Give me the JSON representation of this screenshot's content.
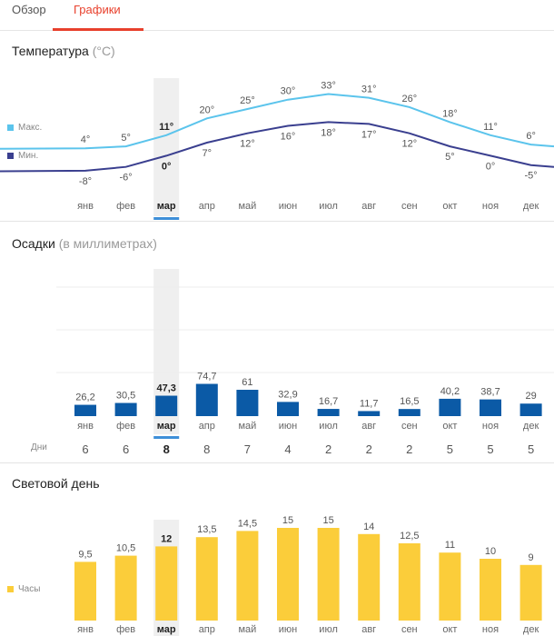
{
  "tabs": {
    "overview": "Обзор",
    "charts": "Графики"
  },
  "temperature": {
    "title": "Температура",
    "unit": "(°C)",
    "legend_max": "Макс.",
    "legend_min": "Мин.",
    "color_max": "#5bc4ec",
    "color_min": "#3a3f8f"
  },
  "precipitation": {
    "title": "Осадки",
    "unit": "(в миллиметрах)",
    "days_label": "Дни",
    "color": "#0b5aa6"
  },
  "daylight": {
    "title": "Световой день",
    "legend": "Часы",
    "color": "#fbcd3a"
  },
  "selected_month_index": 2,
  "chart_data": [
    {
      "type": "line",
      "title": "Температура",
      "categories": [
        "янв",
        "фев",
        "мар",
        "апр",
        "май",
        "июн",
        "июл",
        "авг",
        "сен",
        "окт",
        "ноя",
        "дек"
      ],
      "series": [
        {
          "name": "Макс.",
          "values": [
            4,
            5,
            11,
            20,
            25,
            30,
            33,
            31,
            26,
            18,
            11,
            6
          ],
          "labels": [
            "4°",
            "5°",
            "11°",
            "20°",
            "25°",
            "30°",
            "33°",
            "31°",
            "26°",
            "18°",
            "11°",
            "6°"
          ]
        },
        {
          "name": "Мин.",
          "values": [
            -8,
            -6,
            0,
            7,
            12,
            16,
            18,
            17,
            12,
            5,
            0,
            -5
          ],
          "labels": [
            "-8°",
            "-6°",
            "0°",
            "7°",
            "12°",
            "16°",
            "18°",
            "17°",
            "12°",
            "5°",
            "0°",
            "-5°"
          ]
        }
      ]
    },
    {
      "type": "bar",
      "title": "Осадки",
      "categories": [
        "янв",
        "фев",
        "мар",
        "апр",
        "май",
        "июн",
        "июл",
        "авг",
        "сен",
        "окт",
        "ноя",
        "дек"
      ],
      "values": [
        26.2,
        30.5,
        47.3,
        74.7,
        61,
        32.9,
        16.7,
        11.7,
        16.5,
        40.2,
        38.7,
        29
      ],
      "labels": [
        "26,2",
        "30,5",
        "47,3",
        "74,7",
        "61",
        "32,9",
        "16,7",
        "11,7",
        "16,5",
        "40,2",
        "38,7",
        "29"
      ],
      "days_label": "Дни",
      "days": [
        "6",
        "6",
        "8",
        "8",
        "7",
        "4",
        "2",
        "2",
        "2",
        "5",
        "5",
        "5"
      ],
      "grid": true
    },
    {
      "type": "bar",
      "title": "Световой день",
      "legend": "Часы",
      "categories": [
        "янв",
        "фев",
        "мар",
        "апр",
        "май",
        "июн",
        "июл",
        "авг",
        "сен",
        "окт",
        "ноя",
        "дек"
      ],
      "values": [
        9.5,
        10.5,
        12,
        13.5,
        14.5,
        15,
        15,
        14,
        12.5,
        11,
        10,
        9
      ],
      "labels": [
        "9,5",
        "10,5",
        "12",
        "13,5",
        "14,5",
        "15",
        "15",
        "14",
        "12,5",
        "11",
        "10",
        "9"
      ]
    }
  ]
}
